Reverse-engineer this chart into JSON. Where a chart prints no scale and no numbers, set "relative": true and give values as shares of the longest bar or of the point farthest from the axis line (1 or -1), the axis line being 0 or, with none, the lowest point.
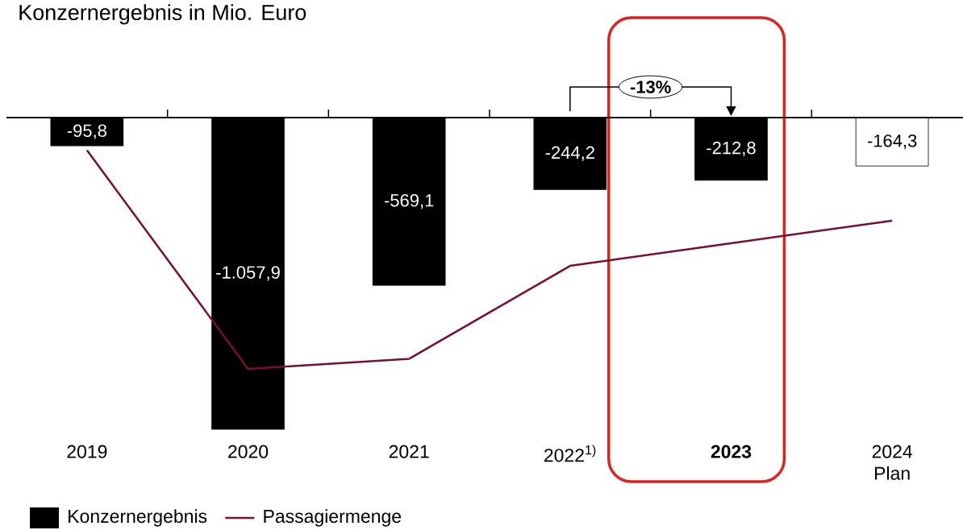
{
  "chart_data": [
    {
      "type": "bar",
      "title": "Konzernergebnis in Mio. Euro",
      "categories": [
        "2019",
        "2020",
        "2021",
        "2022$^{1)}$",
        "**2023**",
        "2024 Plan"
      ],
      "series": [
        {
          "name": "Konzernergebnis",
          "colors": [
            "#000000",
            "#000000",
            "#000000",
            "#000000",
            "#000000",
            "#ffffff"
          ],
          "values": [
            -95.8,
            -1057.9,
            -569.1,
            -244.2,
            -212.8,
            -164.3
          ],
          "value_labels": [
            "-95,8",
            "-1.057,9",
            "-569,1",
            "-244,2",
            "-212,8",
            "-164,3"
          ]
        }
      ],
      "annotations": [
        "-13%"
      ],
      "legend": "bottom left"
    },
    {
      "type": "line",
      "relative": true,
      "categories": [
        null,
        null,
        null,
        null,
        null,
        null
      ],
      "series": [
        {
          "name": "Passagiermenge",
          "color": "#7b0c33",
          "values": [
            -0.13,
            -1,
            -0.96,
            -0.59,
            -0.5,
            -0.41
          ]
        }
      ],
      "legend": "bottom left"
    }
  ]
}
